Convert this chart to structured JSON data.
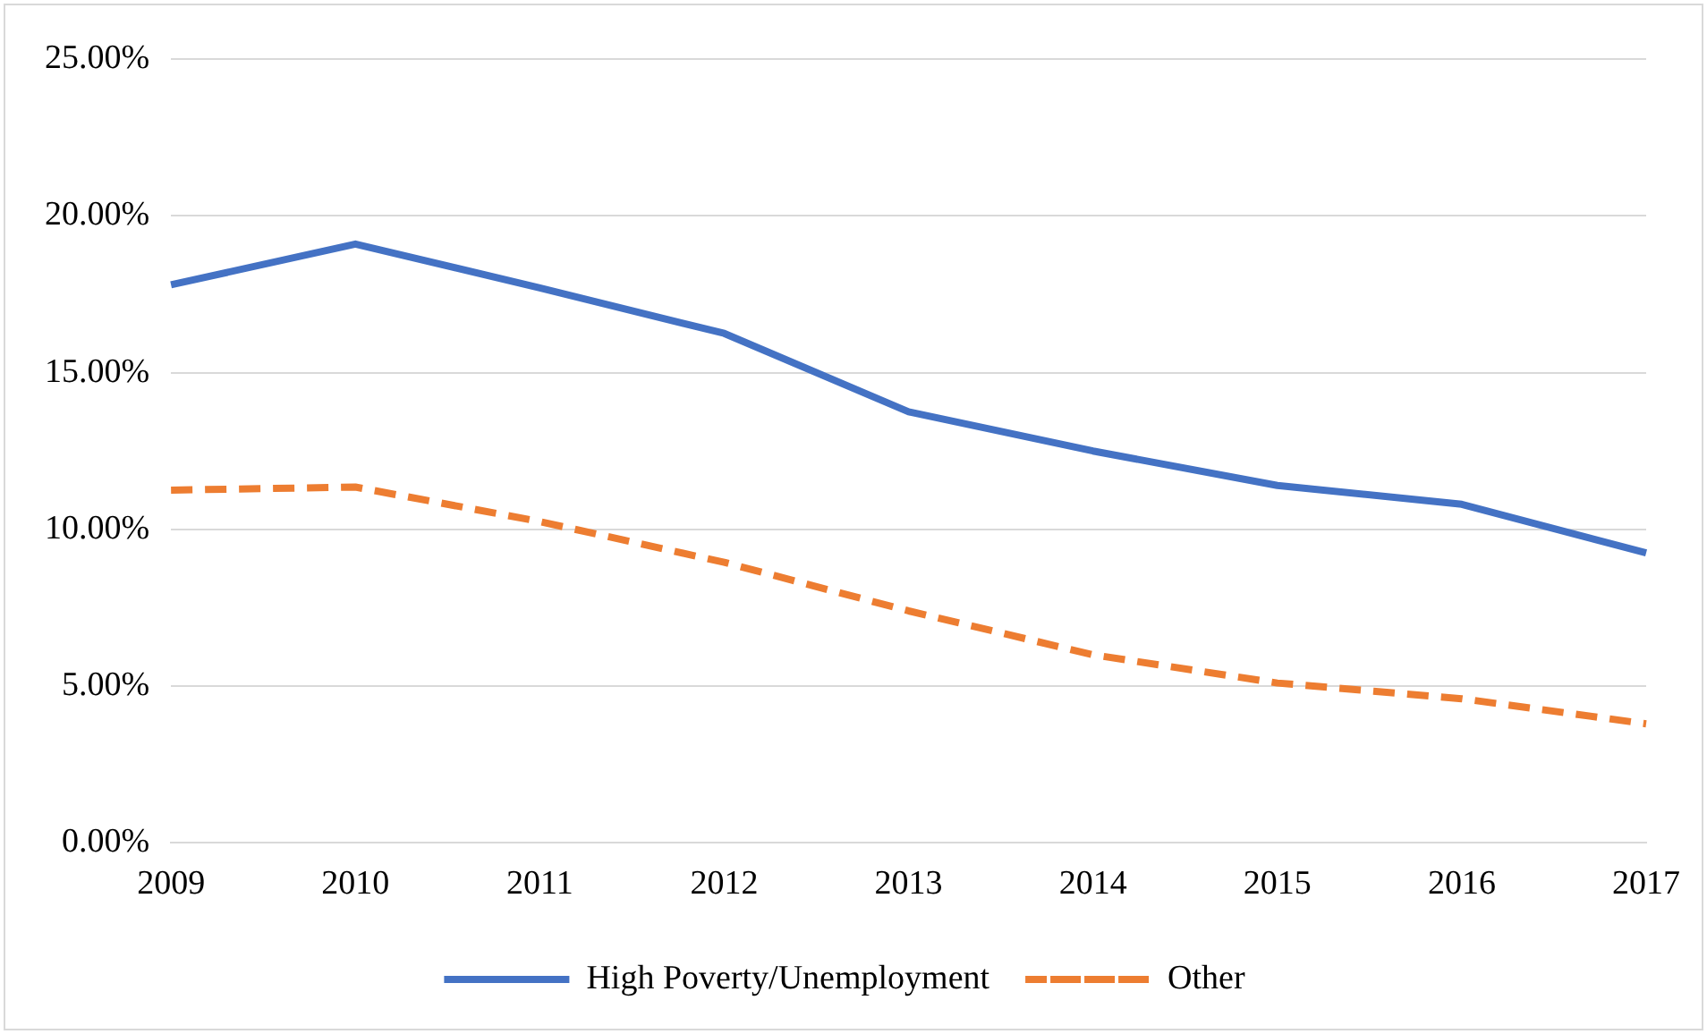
{
  "chart_data": {
    "type": "line",
    "categories": [
      "2009",
      "2010",
      "2011",
      "2012",
      "2013",
      "2014",
      "2015",
      "2016",
      "2017"
    ],
    "series": [
      {
        "name": "High Poverty/Unemployment",
        "color": "#4472c4",
        "line_style": "solid",
        "values": [
          17.8,
          19.1,
          17.7,
          16.25,
          13.75,
          12.5,
          11.4,
          10.8,
          9.25
        ]
      },
      {
        "name": "Other",
        "color": "#ed7d31",
        "line_style": "dashed",
        "values": [
          11.25,
          11.35,
          10.25,
          8.95,
          7.4,
          6.0,
          5.1,
          4.6,
          3.8
        ]
      }
    ],
    "ylim": [
      0,
      25
    ],
    "yticks": [
      {
        "value": 0,
        "label": "0.00%"
      },
      {
        "value": 5,
        "label": "5.00%"
      },
      {
        "value": 10,
        "label": "10.00%"
      },
      {
        "value": 15,
        "label": "15.00%"
      },
      {
        "value": 20,
        "label": "20.00%"
      },
      {
        "value": 25,
        "label": "25.00%"
      }
    ],
    "grid": "y",
    "legend": "bottom",
    "marker": "none"
  }
}
